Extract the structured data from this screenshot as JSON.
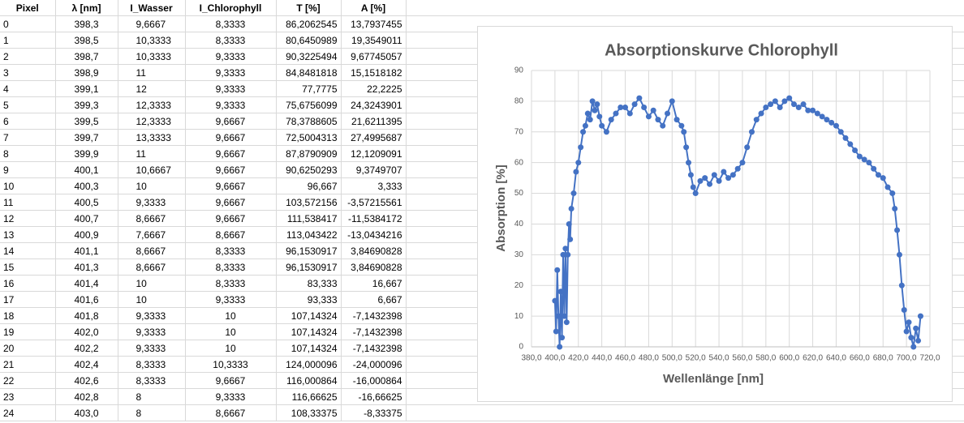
{
  "table": {
    "header": [
      "Pixel",
      "λ [nm]",
      "I_Wasser",
      "I_Chlorophyll",
      "T [%]",
      "A [%]"
    ],
    "rows": [
      [
        "0",
        "398,3",
        "9,6667",
        "8,3333",
        "86,2062545",
        "13,7937455"
      ],
      [
        "1",
        "398,5",
        "10,3333",
        "8,3333",
        "80,6450989",
        "19,3549011"
      ],
      [
        "2",
        "398,7",
        "10,3333",
        "9,3333",
        "90,3225494",
        "9,67745057"
      ],
      [
        "3",
        "398,9",
        "11",
        "9,3333",
        "84,8481818",
        "15,1518182"
      ],
      [
        "4",
        "399,1",
        "12",
        "9,3333",
        "77,7775",
        "22,2225"
      ],
      [
        "5",
        "399,3",
        "12,3333",
        "9,3333",
        "75,6756099",
        "24,3243901"
      ],
      [
        "6",
        "399,5",
        "12,3333",
        "9,6667",
        "78,3788605",
        "21,6211395"
      ],
      [
        "7",
        "399,7",
        "13,3333",
        "9,6667",
        "72,5004313",
        "27,4995687"
      ],
      [
        "8",
        "399,9",
        "11",
        "9,6667",
        "87,8790909",
        "12,1209091"
      ],
      [
        "9",
        "400,1",
        "10,6667",
        "9,6667",
        "90,6250293",
        "9,3749707"
      ],
      [
        "10",
        "400,3",
        "10",
        "9,6667",
        "96,667",
        "3,333"
      ],
      [
        "11",
        "400,5",
        "9,3333",
        "9,6667",
        "103,572156",
        "-3,57215561"
      ],
      [
        "12",
        "400,7",
        "8,6667",
        "9,6667",
        "111,538417",
        "-11,5384172"
      ],
      [
        "13",
        "400,9",
        "7,6667",
        "8,6667",
        "113,043422",
        "-13,0434216"
      ],
      [
        "14",
        "401,1",
        "8,6667",
        "8,3333",
        "96,1530917",
        "3,84690828"
      ],
      [
        "15",
        "401,3",
        "8,6667",
        "8,3333",
        "96,1530917",
        "3,84690828"
      ],
      [
        "16",
        "401,4",
        "10",
        "8,3333",
        "83,333",
        "16,667"
      ],
      [
        "17",
        "401,6",
        "10",
        "9,3333",
        "93,333",
        "6,667"
      ],
      [
        "18",
        "401,8",
        "9,3333",
        "10",
        "107,14324",
        "-7,1432398"
      ],
      [
        "19",
        "402,0",
        "9,3333",
        "10",
        "107,14324",
        "-7,1432398"
      ],
      [
        "20",
        "402,2",
        "9,3333",
        "10",
        "107,14324",
        "-7,1432398"
      ],
      [
        "21",
        "402,4",
        "8,3333",
        "10,3333",
        "124,000096",
        "-24,000096"
      ],
      [
        "22",
        "402,6",
        "8,3333",
        "9,6667",
        "116,000864",
        "-16,000864"
      ],
      [
        "23",
        "402,8",
        "8",
        "9,3333",
        "116,66625",
        "-16,66625"
      ],
      [
        "24",
        "403,0",
        "8",
        "8,6667",
        "108,33375",
        "-8,33375"
      ]
    ]
  },
  "chart_data": {
    "type": "scatter",
    "title": "Absorptionskurve Chlorophyll",
    "xlabel": "Wellenlänge [nm]",
    "ylabel": "Absorption [%]",
    "color": "#4472c4",
    "line": true,
    "grid": true,
    "x": [
      400,
      401,
      402,
      403,
      404,
      405,
      406,
      407,
      408,
      409,
      410,
      411,
      412,
      413,
      414,
      416,
      418,
      420,
      422,
      424,
      426,
      428,
      430,
      432,
      434,
      436,
      438,
      440,
      444,
      448,
      452,
      456,
      460,
      464,
      468,
      472,
      476,
      480,
      484,
      488,
      492,
      496,
      500,
      504,
      508,
      510,
      512,
      514,
      516,
      518,
      520,
      524,
      528,
      532,
      536,
      540,
      544,
      548,
      552,
      556,
      560,
      564,
      568,
      572,
      576,
      580,
      584,
      588,
      592,
      596,
      600,
      604,
      608,
      612,
      616,
      620,
      624,
      628,
      632,
      636,
      640,
      644,
      648,
      652,
      656,
      660,
      664,
      668,
      672,
      676,
      680,
      684,
      688,
      690,
      692,
      694,
      696,
      698,
      700,
      702,
      704,
      706,
      708,
      710,
      712
    ],
    "values": [
      15,
      5,
      25,
      10,
      0,
      18,
      3,
      30,
      10,
      32,
      8,
      30,
      40,
      35,
      45,
      50,
      57,
      60,
      65,
      70,
      72,
      76,
      74,
      80,
      77,
      79,
      75,
      72,
      70,
      74,
      76,
      78,
      78,
      76,
      79,
      81,
      78,
      75,
      77,
      74,
      72,
      76,
      80,
      74,
      72,
      70,
      65,
      60,
      56,
      52,
      50,
      54,
      55,
      53,
      56,
      54,
      57,
      55,
      56,
      58,
      60,
      65,
      70,
      74,
      76,
      78,
      79,
      80,
      78,
      80,
      81,
      79,
      78,
      79,
      77,
      77,
      76,
      75,
      74,
      73,
      72,
      70,
      68,
      66,
      64,
      62,
      61,
      60,
      58,
      56,
      55,
      52,
      50,
      45,
      38,
      30,
      20,
      12,
      5,
      8,
      3,
      0,
      6,
      2,
      10
    ],
    "xlim": [
      380,
      720
    ],
    "xticks": [
      {
        "value": 380,
        "label": "380,0"
      },
      {
        "value": 400,
        "label": "400,0"
      },
      {
        "value": 420,
        "label": "420,0"
      },
      {
        "value": 440,
        "label": "440,0"
      },
      {
        "value": 460,
        "label": "460,0"
      },
      {
        "value": 480,
        "label": "480,0"
      },
      {
        "value": 500,
        "label": "500,0"
      },
      {
        "value": 520,
        "label": "520,0"
      },
      {
        "value": 540,
        "label": "540,0"
      },
      {
        "value": 560,
        "label": "560,0"
      },
      {
        "value": 580,
        "label": "580,0"
      },
      {
        "value": 600,
        "label": "600,0"
      },
      {
        "value": 620,
        "label": "620,0"
      },
      {
        "value": 640,
        "label": "640,0"
      },
      {
        "value": 660,
        "label": "660,0"
      },
      {
        "value": 680,
        "label": "680,0"
      },
      {
        "value": 700,
        "label": "700,0"
      },
      {
        "value": 720,
        "label": "720,0"
      }
    ],
    "ylim": [
      0,
      90
    ],
    "yticks": [
      0,
      10,
      20,
      30,
      40,
      50,
      60,
      70,
      80,
      90
    ]
  }
}
